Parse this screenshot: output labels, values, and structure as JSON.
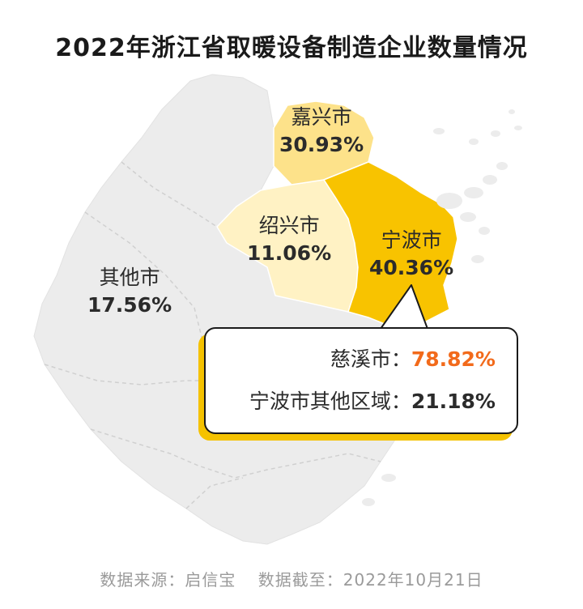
{
  "title": "2022年浙江省取暖设备制造企业数量情况",
  "regions": [
    {
      "name": "嘉兴市",
      "percent": "30.93%",
      "value": 30.93,
      "color": "#fde28a"
    },
    {
      "name": "绍兴市",
      "percent": "11.06%",
      "value": 11.06,
      "color": "#fff2c4"
    },
    {
      "name": "宁波市",
      "percent": "40.36%",
      "value": 40.36,
      "color": "#f8c300"
    },
    {
      "name": "其他市",
      "percent": "17.56%",
      "value": 17.56,
      "color": "#ececec"
    }
  ],
  "callout": {
    "rows": [
      {
        "label": "慈溪市：",
        "value": "78.82%",
        "value_color": "#f26a1b"
      },
      {
        "label": "宁波市其他区域：",
        "value": "21.18%"
      }
    ]
  },
  "footer": {
    "source": "数据来源：启信宝",
    "cutoff": "数据截至：2022年10月21日"
  }
}
